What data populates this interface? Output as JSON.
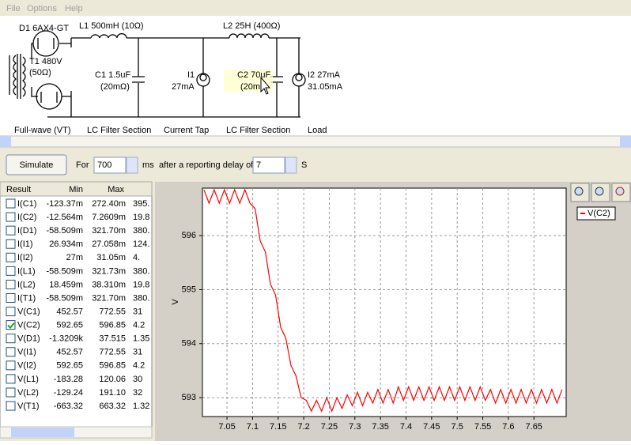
{
  "menu": [
    "File",
    "Options",
    "Help"
  ],
  "circuit_labels": [
    "D1 6AX4-GT",
    "T1 480V",
    "(50Ω)",
    "L1 500mH (10Ω)",
    "C1 1.5uF",
    "(20mΩ)",
    "I1",
    "27mA",
    "L2 25H (400Ω)",
    "C2 70uF",
    "(20m",
    "I2 27mA",
    "31.05mA",
    "Full-wave (VT)",
    "LC Filter Section",
    "Current Tap",
    "LC Filter Section",
    "Load"
  ],
  "toolbar": {
    "button": "Simulate",
    "for": "For",
    "duration": 700,
    "unit": "ms",
    "delay_text": "after a reporting delay of",
    "delay": 7,
    "delay_unit": "S"
  },
  "table": {
    "headers": [
      "Result",
      "Min",
      "Max"
    ],
    "rows": [
      {
        "name": "I(C1)",
        "min": "-123.37m",
        "max": "272.40m",
        "more": "395.",
        "checked": false
      },
      {
        "name": "I(C2)",
        "min": "-12.564m",
        "max": "7.2609m",
        "more": "19.8",
        "checked": false
      },
      {
        "name": "I(D1)",
        "min": "-58.509m",
        "max": "321.70m",
        "more": "380.",
        "checked": false
      },
      {
        "name": "I(I1)",
        "min": "26.934m",
        "max": "27.058m",
        "more": "124.",
        "checked": false
      },
      {
        "name": "I(I2)",
        "min": "27m",
        "max": "31.05m",
        "more": "4.",
        "checked": false
      },
      {
        "name": "I(L1)",
        "min": "-58.509m",
        "max": "321.73m",
        "more": "380.",
        "checked": false
      },
      {
        "name": "I(L2)",
        "min": "18.459m",
        "max": "38.310m",
        "more": "19.8",
        "checked": false
      },
      {
        "name": "I(T1)",
        "min": "-58.509m",
        "max": "321.70m",
        "more": "380.",
        "checked": false
      },
      {
        "name": "V(C1)",
        "min": "452.57",
        "max": "772.55",
        "more": "31",
        "checked": false
      },
      {
        "name": "V(C2)",
        "min": "592.65",
        "max": "596.85",
        "more": "4.2",
        "checked": true
      },
      {
        "name": "V(D1)",
        "min": "-1.3209k",
        "max": "37.515",
        "more": "1.35",
        "checked": false
      },
      {
        "name": "V(I1)",
        "min": "452.57",
        "max": "772.55",
        "more": "31",
        "checked": false
      },
      {
        "name": "V(I2)",
        "min": "592.65",
        "max": "596.85",
        "more": "4.2",
        "checked": false
      },
      {
        "name": "V(L1)",
        "min": "-183.28",
        "max": "120.06",
        "more": "30",
        "checked": false
      },
      {
        "name": "V(L2)",
        "min": "-129.24",
        "max": "191.10",
        "more": "32",
        "checked": false
      },
      {
        "name": "V(T1)",
        "min": "-663.32",
        "max": "663.32",
        "more": "1.32",
        "checked": false
      }
    ]
  },
  "chart_data": {
    "type": "line",
    "y_label": "V",
    "grid": true,
    "legend": "top-right",
    "xlim": [
      7.002,
      7.713
    ],
    "ylim": [
      592.65,
      596.88
    ],
    "xticks": [
      7.05,
      7.1,
      7.15,
      7.2,
      7.25,
      7.3,
      7.35,
      7.4,
      7.45,
      7.5,
      7.55,
      7.6,
      7.65
    ],
    "yticks": [
      593,
      594,
      595,
      596
    ],
    "x": [
      7.005,
      7.015,
      7.025,
      7.035,
      7.045,
      7.055,
      7.065,
      7.075,
      7.085,
      7.095,
      7.105,
      7.115,
      7.125,
      7.135,
      7.145,
      7.155,
      7.165,
      7.175,
      7.185,
      7.195,
      7.205,
      7.215,
      7.225,
      7.235,
      7.245,
      7.255,
      7.265,
      7.275,
      7.285,
      7.295,
      7.305,
      7.315,
      7.325,
      7.335,
      7.345,
      7.355,
      7.365,
      7.375,
      7.385,
      7.395,
      7.405,
      7.415,
      7.425,
      7.435,
      7.445,
      7.455,
      7.465,
      7.475,
      7.485,
      7.495,
      7.505,
      7.515,
      7.525,
      7.535,
      7.545,
      7.555,
      7.565,
      7.575,
      7.585,
      7.595,
      7.605,
      7.615,
      7.625,
      7.635,
      7.645,
      7.655,
      7.665,
      7.675,
      7.685,
      7.695,
      7.705
    ],
    "series": [
      {
        "name": "V(C2)",
        "color": "#ff0000",
        "values": [
          596.85,
          596.6,
          596.85,
          596.6,
          596.85,
          596.6,
          596.85,
          596.6,
          596.85,
          596.6,
          596.5,
          595.9,
          595.7,
          595.1,
          594.9,
          594.3,
          594.1,
          593.6,
          593.4,
          593.0,
          592.95,
          592.75,
          592.95,
          592.75,
          593.0,
          592.75,
          593.0,
          592.8,
          593.05,
          592.85,
          593.1,
          592.85,
          593.1,
          592.9,
          593.15,
          592.9,
          593.15,
          592.9,
          593.2,
          592.95,
          593.2,
          592.95,
          593.2,
          592.95,
          593.2,
          592.95,
          593.2,
          592.95,
          593.2,
          592.95,
          593.2,
          592.95,
          593.2,
          592.95,
          593.2,
          592.95,
          593.15,
          592.9,
          593.15,
          592.9,
          593.15,
          592.9,
          593.15,
          592.9,
          593.15,
          592.9,
          593.15,
          592.9,
          593.15,
          592.9,
          593.15
        ]
      }
    ]
  }
}
